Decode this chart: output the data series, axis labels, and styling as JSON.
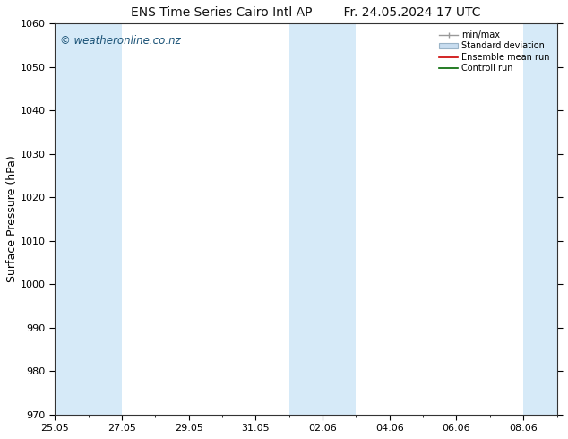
{
  "title_left": "ENS Time Series Cairo Intl AP",
  "title_right": "Fr. 24.05.2024 17 UTC",
  "ylabel": "Surface Pressure (hPa)",
  "ylim": [
    970,
    1060
  ],
  "yticks": [
    970,
    980,
    990,
    1000,
    1010,
    1020,
    1030,
    1040,
    1050,
    1060
  ],
  "watermark": "© weatheronline.co.nz",
  "watermark_color": "#1a5276",
  "bg_color": "#ffffff",
  "plot_bg_color": "#ffffff",
  "band_color": "#d6eaf8",
  "xtick_labels": [
    "25.05",
    "27.05",
    "29.05",
    "31.05",
    "02.06",
    "04.06",
    "06.06",
    "08.06"
  ],
  "title_fontsize": 10,
  "tick_fontsize": 8,
  "watermark_fontsize": 8.5,
  "ylabel_fontsize": 9
}
